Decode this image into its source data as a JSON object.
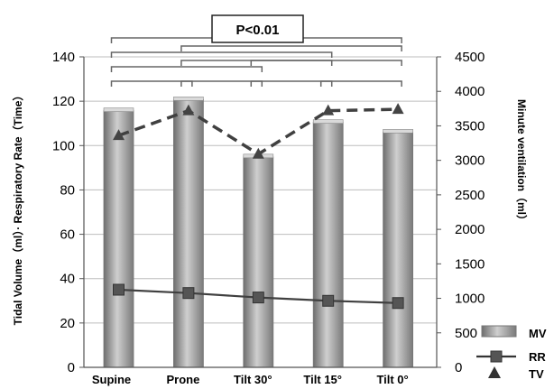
{
  "chart_data": {
    "type": "bar",
    "categories": [
      "Supine",
      "Prone",
      "Tilt 30°",
      "Tilt 15°",
      "Tilt 0°"
    ],
    "series": [
      {
        "name": "MV",
        "type": "bar",
        "axis": "right",
        "values": [
          3720,
          3880,
          3050,
          3550,
          3410
        ],
        "color": "#a8a8a8"
      },
      {
        "name": "RR",
        "type": "line",
        "axis": "left",
        "values": [
          35,
          33.5,
          31.5,
          30,
          29
        ],
        "color": "#404040",
        "marker": "square"
      },
      {
        "name": "TV",
        "type": "line",
        "axis": "right",
        "values": [
          3360,
          3720,
          3090,
          3720,
          3740
        ],
        "color": "#404040",
        "marker": "triangle",
        "dashed": true
      }
    ],
    "ylabel": "Tidal Volume（ml）· Respiratory Rate（Time）",
    "ylabel_right": "Minute ventilation（ml）",
    "ylim": [
      0,
      140
    ],
    "yticks": [
      0,
      20,
      40,
      60,
      80,
      100,
      120,
      140
    ],
    "ylim_right": [
      0,
      4500
    ],
    "yticks_right": [
      0,
      500,
      1000,
      1500,
      2000,
      2500,
      3000,
      3500,
      4000,
      4500
    ],
    "grid": true,
    "legend_position": "bottom-right",
    "annotation": "P<0.01",
    "significance_pairs": [
      [
        0,
        4
      ],
      [
        0,
        3
      ],
      [
        1,
        4
      ],
      [
        0,
        2
      ],
      [
        1,
        3
      ],
      [
        2,
        4
      ],
      [
        0,
        1
      ],
      [
        1,
        2
      ],
      [
        2,
        3
      ],
      [
        3,
        4
      ]
    ]
  }
}
